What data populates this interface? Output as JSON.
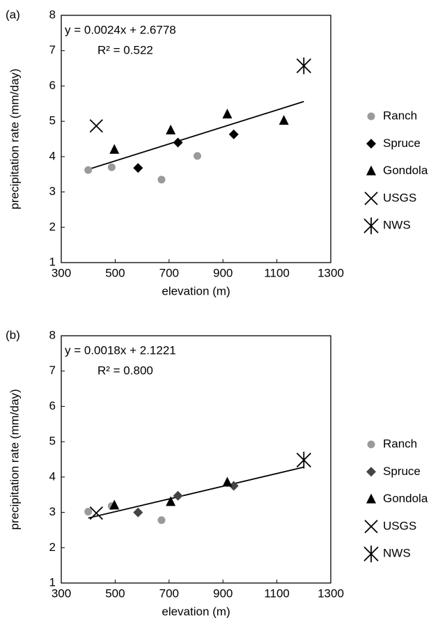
{
  "chart_data": [
    {
      "type": "scatter",
      "panel_label": "(a)",
      "xlabel": "elevation (m)",
      "ylabel": "precipitation rate (mm/day)",
      "xlim": [
        300,
        1300
      ],
      "ylim": [
        1,
        8
      ],
      "xticks": [
        300,
        500,
        700,
        900,
        1100,
        1300
      ],
      "yticks": [
        1,
        2,
        3,
        4,
        5,
        6,
        7,
        8
      ],
      "annotations": [
        "y = 0.0024x + 2.6778",
        "R² = 0.522"
      ],
      "trendline": {
        "x": [
          400,
          1200
        ],
        "y": [
          3.64,
          5.56
        ]
      },
      "series": [
        {
          "name": "Ranch",
          "color": "#9a9a9a",
          "marker": "circle",
          "x": [
            400,
            487,
            672,
            805
          ],
          "values": [
            3.62,
            3.7,
            3.35,
            4.02
          ]
        },
        {
          "name": "Spruce",
          "color": "#000000",
          "marker": "diamond",
          "x": [
            585,
            733,
            940
          ],
          "values": [
            3.68,
            4.4,
            4.63
          ]
        },
        {
          "name": "Gondola",
          "color": "#000000",
          "marker": "triangle",
          "x": [
            497,
            706,
            916,
            1126
          ],
          "values": [
            4.2,
            4.75,
            5.2,
            5.02
          ]
        },
        {
          "name": "USGS",
          "color": "#000000",
          "marker": "x",
          "x": [
            430
          ],
          "values": [
            4.87
          ]
        },
        {
          "name": "NWS",
          "color": "#000000",
          "marker": "asterisk",
          "x": [
            1200
          ],
          "values": [
            6.57
          ]
        }
      ]
    },
    {
      "type": "scatter",
      "panel_label": "(b)",
      "xlabel": "elevation (m)",
      "ylabel": "precipitation rate (mm/day)",
      "xlim": [
        300,
        1300
      ],
      "ylim": [
        1,
        8
      ],
      "xticks": [
        300,
        500,
        700,
        900,
        1100,
        1300
      ],
      "yticks": [
        1,
        2,
        3,
        4,
        5,
        6,
        7,
        8
      ],
      "annotations": [
        "y = 0.0018x + 2.1221",
        "R² = 0.800"
      ],
      "trendline": {
        "x": [
          400,
          1200
        ],
        "y": [
          2.84,
          4.28
        ]
      },
      "series": [
        {
          "name": "Ranch",
          "color": "#9a9a9a",
          "marker": "circle",
          "x": [
            400,
            487,
            672
          ],
          "values": [
            3.02,
            3.18,
            2.78
          ]
        },
        {
          "name": "Spruce",
          "color": "#444444",
          "marker": "diamond",
          "x": [
            585,
            733,
            940
          ],
          "values": [
            3.0,
            3.47,
            3.75
          ]
        },
        {
          "name": "Gondola",
          "color": "#000000",
          "marker": "triangle",
          "x": [
            497,
            706,
            916
          ],
          "values": [
            3.2,
            3.3,
            3.85
          ]
        },
        {
          "name": "USGS",
          "color": "#000000",
          "marker": "x",
          "x": [
            430
          ],
          "values": [
            2.98
          ]
        },
        {
          "name": "NWS",
          "color": "#000000",
          "marker": "asterisk",
          "x": [
            1200
          ],
          "values": [
            4.48
          ]
        }
      ]
    }
  ]
}
